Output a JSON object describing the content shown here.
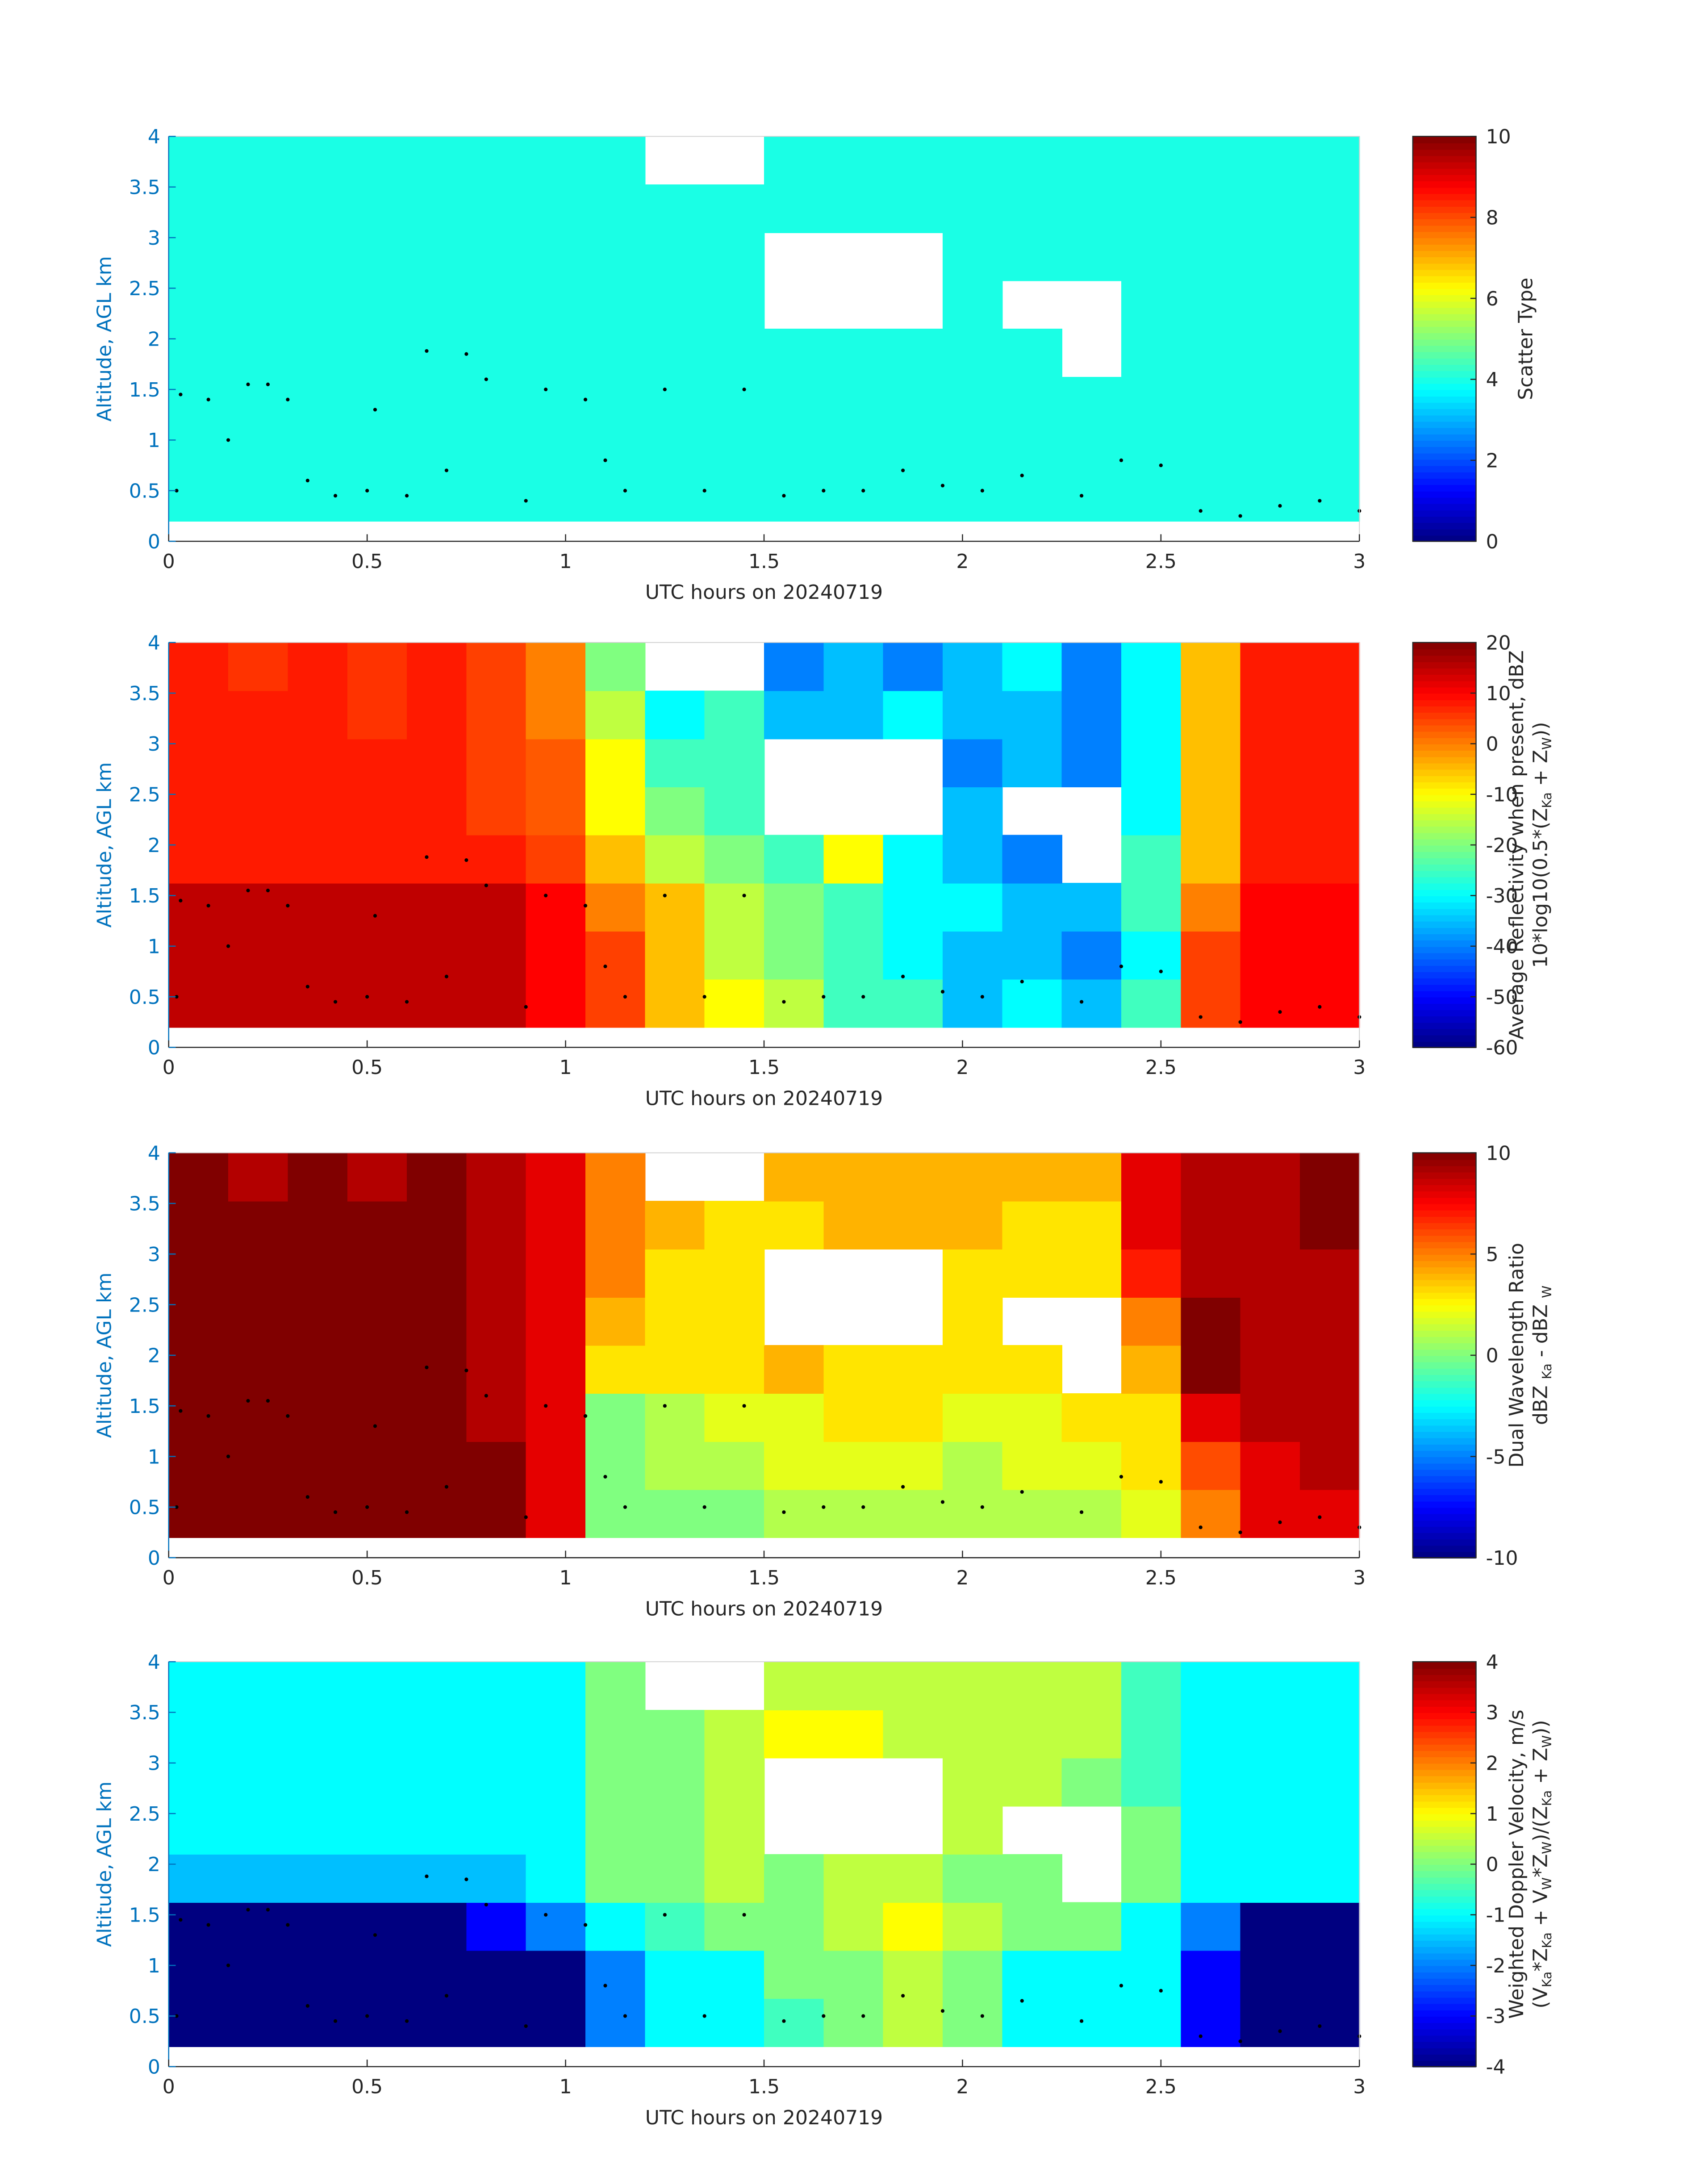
{
  "chart_data": [
    {
      "type": "heatmap",
      "xlabel": "UTC hours on 20240719",
      "ylabel": "Altitude, AGL km",
      "xlim": [
        0,
        3
      ],
      "ylim": [
        0,
        4
      ],
      "xticks": [
        0,
        0.5,
        1,
        1.5,
        2,
        2.5,
        3
      ],
      "yticks": [
        0,
        0.5,
        1,
        1.5,
        2,
        2.5,
        3,
        3.5,
        4
      ],
      "xbins": [
        0,
        0.15,
        0.3,
        0.45,
        0.6,
        0.75,
        0.9,
        1.05,
        1.2,
        1.35,
        1.5,
        1.65,
        1.8,
        1.95,
        2.1,
        2.25,
        2.4,
        2.55,
        2.7,
        2.85,
        3
      ],
      "ybins": [
        0.2,
        0.675,
        1.15,
        1.625,
        2.1,
        2.575,
        3.05,
        3.525,
        4
      ],
      "colormap": "jet",
      "clim": [
        0,
        10
      ],
      "cticks": [
        0,
        2,
        4,
        6,
        8,
        10
      ],
      "colorbar_label": [
        [
          "Scatter Type"
        ]
      ],
      "z": [
        [
          4,
          4,
          4,
          4,
          4,
          4,
          4,
          4,
          4,
          4,
          4,
          4,
          4,
          4,
          4,
          4,
          4,
          4,
          4,
          4
        ],
        [
          4,
          4,
          4,
          4,
          4,
          4,
          4,
          4,
          4,
          4,
          4,
          4,
          4,
          4,
          4,
          4,
          4,
          4,
          4,
          4
        ],
        [
          4,
          4,
          4,
          4,
          4,
          4,
          4,
          4,
          4,
          4,
          4,
          4,
          4,
          4,
          4,
          4,
          4,
          4,
          4,
          4
        ],
        [
          4,
          4,
          4,
          4,
          4,
          4,
          4,
          4,
          4,
          4,
          4,
          4,
          4,
          4,
          4,
          null,
          4,
          4,
          4,
          4
        ],
        [
          4,
          4,
          4,
          4,
          4,
          4,
          4,
          4,
          4,
          4,
          null,
          null,
          null,
          4,
          null,
          null,
          4,
          4,
          4,
          4
        ],
        [
          4,
          4,
          4,
          4,
          4,
          4,
          4,
          4,
          4,
          4,
          null,
          null,
          null,
          4,
          4,
          4,
          4,
          4,
          4,
          4
        ],
        [
          4,
          4,
          4,
          4,
          4,
          4,
          4,
          4,
          4,
          4,
          4,
          4,
          4,
          4,
          4,
          4,
          4,
          4,
          4,
          4
        ],
        [
          4,
          4,
          4,
          4,
          4,
          4,
          4,
          4,
          null,
          null,
          4,
          4,
          4,
          4,
          4,
          4,
          4,
          4,
          4,
          4
        ]
      ],
      "scatter": {
        "color": "#000000",
        "x": [
          0.02,
          0.03,
          0.1,
          0.15,
          0.2,
          0.25,
          0.3,
          0.35,
          0.42,
          0.5,
          0.52,
          0.6,
          0.65,
          0.7,
          0.75,
          0.8,
          0.9,
          0.95,
          1.05,
          1.1,
          1.15,
          1.25,
          1.35,
          1.45,
          1.55,
          1.65,
          1.75,
          1.85,
          1.95,
          2.05,
          2.15,
          2.3,
          2.4,
          2.5,
          2.6,
          2.7,
          2.8,
          2.9,
          3.0
        ],
        "y": [
          0.5,
          1.45,
          1.4,
          1.0,
          1.55,
          1.55,
          1.4,
          0.6,
          0.45,
          0.5,
          1.3,
          0.45,
          1.88,
          0.7,
          1.85,
          1.6,
          0.4,
          1.5,
          1.4,
          0.8,
          0.5,
          1.5,
          0.5,
          1.5,
          0.45,
          0.5,
          0.5,
          0.7,
          0.55,
          0.5,
          0.65,
          0.45,
          0.8,
          0.75,
          0.3,
          0.25,
          0.35,
          0.4,
          0.3
        ]
      }
    },
    {
      "type": "heatmap",
      "xlabel": "UTC hours on 20240719",
      "ylabel": "Altitude, AGL km",
      "xlim": [
        0,
        3
      ],
      "ylim": [
        0,
        4
      ],
      "xticks": [
        0,
        0.5,
        1,
        1.5,
        2,
        2.5,
        3
      ],
      "yticks": [
        0,
        0.5,
        1,
        1.5,
        2,
        2.5,
        3,
        3.5,
        4
      ],
      "xbins": [
        0,
        0.15,
        0.3,
        0.45,
        0.6,
        0.75,
        0.9,
        1.05,
        1.2,
        1.35,
        1.5,
        1.65,
        1.8,
        1.95,
        2.1,
        2.25,
        2.4,
        2.55,
        2.7,
        2.85,
        3
      ],
      "ybins": [
        0.2,
        0.675,
        1.15,
        1.625,
        2.1,
        2.575,
        3.05,
        3.525,
        4
      ],
      "colormap": "jet",
      "clim": [
        -60,
        20
      ],
      "cticks": [
        -60,
        -50,
        -40,
        -30,
        -20,
        -10,
        0,
        10,
        20
      ],
      "colorbar_label": [
        [
          "Average Reflectivity when present, dBZ"
        ],
        [
          "10*log10(0.5*(Z",
          "Ka",
          " + Z",
          "W",
          "))"
        ]
      ],
      "z": [
        [
          15,
          15,
          15,
          15,
          15,
          15,
          10,
          5,
          -5,
          -10,
          -15,
          -25,
          -25,
          -35,
          -30,
          -35,
          -25,
          5,
          10,
          10
        ],
        [
          15,
          15,
          15,
          15,
          15,
          15,
          10,
          5,
          -5,
          -15,
          -20,
          -25,
          -30,
          -35,
          -35,
          -40,
          -30,
          5,
          10,
          10
        ],
        [
          15,
          15,
          15,
          15,
          15,
          15,
          10,
          0,
          -5,
          -15,
          -20,
          -25,
          -30,
          -30,
          -35,
          -35,
          -25,
          0,
          10,
          10
        ],
        [
          8,
          8,
          8,
          8,
          8,
          8,
          5,
          -5,
          -15,
          -20,
          -25,
          -10,
          -30,
          -35,
          -40,
          null,
          -25,
          -5,
          8,
          8
        ],
        [
          8,
          8,
          8,
          8,
          8,
          5,
          3,
          -10,
          -20,
          -25,
          null,
          null,
          null,
          -35,
          null,
          null,
          -30,
          -5,
          8,
          8
        ],
        [
          8,
          8,
          8,
          8,
          8,
          5,
          3,
          -10,
          -25,
          -25,
          null,
          null,
          null,
          -40,
          -35,
          -40,
          -30,
          -5,
          8,
          8
        ],
        [
          8,
          8,
          8,
          6,
          8,
          5,
          0,
          -15,
          -30,
          -25,
          -35,
          -35,
          -30,
          -35,
          -35,
          -40,
          -30,
          -5,
          8,
          8
        ],
        [
          8,
          6,
          8,
          6,
          8,
          5,
          0,
          -20,
          null,
          null,
          -40,
          -35,
          -40,
          -35,
          -30,
          -40,
          -30,
          -5,
          8,
          8
        ]
      ],
      "scatter": {
        "color": "#000000",
        "x": [
          0.02,
          0.03,
          0.1,
          0.15,
          0.2,
          0.25,
          0.3,
          0.35,
          0.42,
          0.5,
          0.52,
          0.6,
          0.65,
          0.7,
          0.75,
          0.8,
          0.9,
          0.95,
          1.05,
          1.1,
          1.15,
          1.25,
          1.35,
          1.45,
          1.55,
          1.65,
          1.75,
          1.85,
          1.95,
          2.05,
          2.15,
          2.3,
          2.4,
          2.5,
          2.6,
          2.7,
          2.8,
          2.9,
          3.0
        ],
        "y": [
          0.5,
          1.45,
          1.4,
          1.0,
          1.55,
          1.55,
          1.4,
          0.6,
          0.45,
          0.5,
          1.3,
          0.45,
          1.88,
          0.7,
          1.85,
          1.6,
          0.4,
          1.5,
          1.4,
          0.8,
          0.5,
          1.5,
          0.5,
          1.5,
          0.45,
          0.5,
          0.5,
          0.7,
          0.55,
          0.5,
          0.65,
          0.45,
          0.8,
          0.75,
          0.3,
          0.25,
          0.35,
          0.4,
          0.3
        ]
      }
    },
    {
      "type": "heatmap",
      "xlabel": "UTC hours on 20240719",
      "ylabel": "Altitude, AGL km",
      "xlim": [
        0,
        3
      ],
      "ylim": [
        0,
        4
      ],
      "xticks": [
        0,
        0.5,
        1,
        1.5,
        2,
        2.5,
        3
      ],
      "yticks": [
        0,
        0.5,
        1,
        1.5,
        2,
        2.5,
        3,
        3.5,
        4
      ],
      "xbins": [
        0,
        0.15,
        0.3,
        0.45,
        0.6,
        0.75,
        0.9,
        1.05,
        1.2,
        1.35,
        1.5,
        1.65,
        1.8,
        1.95,
        2.1,
        2.25,
        2.4,
        2.55,
        2.7,
        2.85,
        3
      ],
      "ybins": [
        0.2,
        0.675,
        1.15,
        1.625,
        2.1,
        2.575,
        3.05,
        3.525,
        4
      ],
      "colormap": "jet",
      "clim": [
        -10,
        10
      ],
      "cticks": [
        -10,
        -5,
        0,
        5,
        10
      ],
      "colorbar_label": [
        [
          "Dual Wavelength Ratio"
        ],
        [
          "dBZ ",
          "Ka",
          " - dBZ ",
          "W"
        ]
      ],
      "z": [
        [
          10,
          10,
          10,
          10,
          10,
          10,
          8,
          0,
          0,
          0,
          1,
          1,
          1,
          1,
          1,
          1,
          2,
          5,
          8,
          8
        ],
        [
          10,
          10,
          10,
          10,
          10,
          10,
          8,
          0,
          1,
          1,
          2,
          2,
          2,
          1,
          2,
          2,
          3,
          6,
          8,
          9
        ],
        [
          10,
          10,
          10,
          10,
          10,
          9,
          8,
          0,
          1,
          2,
          2,
          3,
          3,
          2,
          2,
          3,
          3,
          8,
          9,
          9
        ],
        [
          10,
          10,
          10,
          10,
          10,
          9,
          8,
          3,
          3,
          3,
          4,
          3,
          3,
          3,
          3,
          null,
          4,
          10,
          9,
          9
        ],
        [
          10,
          10,
          10,
          10,
          10,
          9,
          8,
          4,
          3,
          3,
          null,
          null,
          null,
          3,
          null,
          null,
          5,
          10,
          9,
          9
        ],
        [
          10,
          10,
          10,
          10,
          10,
          9,
          8,
          5,
          3,
          3,
          null,
          null,
          null,
          3,
          3,
          3,
          7,
          9,
          9,
          9
        ],
        [
          10,
          10,
          10,
          10,
          10,
          9,
          8,
          5,
          4,
          3,
          3,
          4,
          4,
          4,
          3,
          3,
          8,
          9,
          9,
          10
        ],
        [
          10,
          9,
          10,
          9,
          10,
          9,
          8,
          5,
          null,
          null,
          4,
          4,
          4,
          4,
          4,
          4,
          8,
          9,
          9,
          10
        ]
      ],
      "scatter": {
        "color": "#000000",
        "x": [
          0.02,
          0.03,
          0.1,
          0.15,
          0.2,
          0.25,
          0.3,
          0.35,
          0.42,
          0.5,
          0.52,
          0.6,
          0.65,
          0.7,
          0.75,
          0.8,
          0.9,
          0.95,
          1.05,
          1.1,
          1.15,
          1.25,
          1.35,
          1.45,
          1.55,
          1.65,
          1.75,
          1.85,
          1.95,
          2.05,
          2.15,
          2.3,
          2.4,
          2.5,
          2.6,
          2.7,
          2.8,
          2.9,
          3.0
        ],
        "y": [
          0.5,
          1.45,
          1.4,
          1.0,
          1.55,
          1.55,
          1.4,
          0.6,
          0.45,
          0.5,
          1.3,
          0.45,
          1.88,
          0.7,
          1.85,
          1.6,
          0.4,
          1.5,
          1.4,
          0.8,
          0.5,
          1.5,
          0.5,
          1.5,
          0.45,
          0.5,
          0.5,
          0.7,
          0.55,
          0.5,
          0.65,
          0.45,
          0.8,
          0.75,
          0.3,
          0.25,
          0.35,
          0.4,
          0.3
        ]
      }
    },
    {
      "type": "heatmap",
      "xlabel": "UTC hours on 20240719",
      "ylabel": "Altitude, AGL km",
      "xlim": [
        0,
        3
      ],
      "ylim": [
        0,
        4
      ],
      "xticks": [
        0,
        0.5,
        1,
        1.5,
        2,
        2.5,
        3
      ],
      "yticks": [
        0,
        0.5,
        1,
        1.5,
        2,
        2.5,
        3,
        3.5,
        4
      ],
      "xbins": [
        0,
        0.15,
        0.3,
        0.45,
        0.6,
        0.75,
        0.9,
        1.05,
        1.2,
        1.35,
        1.5,
        1.65,
        1.8,
        1.95,
        2.1,
        2.25,
        2.4,
        2.55,
        2.7,
        2.85,
        3
      ],
      "ybins": [
        0.2,
        0.675,
        1.15,
        1.625,
        2.1,
        2.575,
        3.05,
        3.525,
        4
      ],
      "colormap": "jet",
      "clim": [
        -4,
        4
      ],
      "cticks": [
        -4,
        -3,
        -2,
        -1,
        0,
        1,
        2,
        3,
        4
      ],
      "colorbar_label": [
        [
          "Weighted Doppler Velocity, m/s"
        ],
        [
          "(V",
          "Ka",
          "*Z",
          "Ka",
          " + V",
          "W",
          "*Z",
          "W",
          ")/(Z",
          "Ka",
          " + Z",
          "W",
          "))"
        ]
      ],
      "z": [
        [
          -4,
          -4,
          -4,
          -4,
          -4,
          -4,
          -4,
          -2,
          -1,
          -1,
          -0.5,
          0,
          0.5,
          0,
          -1,
          -1,
          -1,
          -3,
          -4,
          -4
        ],
        [
          -4,
          -4,
          -4,
          -4,
          -4,
          -4,
          -4,
          -2,
          -1,
          -1,
          0,
          0,
          0.5,
          0,
          -1,
          -1,
          -1,
          -3,
          -4,
          -4
        ],
        [
          -4,
          -4,
          -4,
          -4,
          -4,
          -3,
          -2,
          -1,
          -0.5,
          0,
          0,
          0.5,
          1,
          0.5,
          0,
          0,
          -1,
          -2,
          -4,
          -4
        ],
        [
          -1.5,
          -1.5,
          -1.5,
          -1.5,
          -1.5,
          -1.5,
          -1,
          0,
          0,
          0.5,
          0,
          0.5,
          0.5,
          0,
          0,
          null,
          0,
          -1,
          -1,
          -1
        ],
        [
          -1,
          -1,
          -1,
          -1,
          -1,
          -1,
          -1,
          0,
          0,
          0.5,
          null,
          null,
          null,
          0.5,
          null,
          null,
          0,
          -1,
          -1,
          -1
        ],
        [
          -1,
          -1,
          -1,
          -1,
          -1,
          -1,
          -1,
          0,
          0,
          0.5,
          null,
          null,
          null,
          0.5,
          0.5,
          0,
          -0.5,
          -1,
          -1,
          -1
        ],
        [
          -1,
          -1,
          -1,
          -1,
          -1,
          -1,
          -1,
          0,
          0,
          0.5,
          1,
          1,
          0.5,
          0.5,
          0.5,
          0.5,
          -0.5,
          -1,
          -1,
          -1
        ],
        [
          -1,
          -1,
          -1,
          -1,
          -1,
          -1,
          -1,
          0,
          null,
          null,
          0.5,
          0.5,
          0.5,
          0.5,
          0.5,
          0.5,
          -0.5,
          -1,
          -1,
          -1
        ]
      ],
      "scatter": {
        "color": "#000000",
        "x": [
          0.02,
          0.03,
          0.1,
          0.15,
          0.2,
          0.25,
          0.3,
          0.35,
          0.42,
          0.5,
          0.52,
          0.6,
          0.65,
          0.7,
          0.75,
          0.8,
          0.9,
          0.95,
          1.05,
          1.1,
          1.15,
          1.25,
          1.35,
          1.45,
          1.55,
          1.65,
          1.75,
          1.85,
          1.95,
          2.05,
          2.15,
          2.3,
          2.4,
          2.5,
          2.6,
          2.7,
          2.8,
          2.9,
          3.0
        ],
        "y": [
          0.5,
          1.45,
          1.4,
          1.0,
          1.55,
          1.55,
          1.4,
          0.6,
          0.45,
          0.5,
          1.3,
          0.45,
          1.88,
          0.7,
          1.85,
          1.6,
          0.4,
          1.5,
          1.4,
          0.8,
          0.5,
          1.5,
          0.5,
          1.5,
          0.45,
          0.5,
          0.5,
          0.7,
          0.55,
          0.5,
          0.65,
          0.45,
          0.8,
          0.75,
          0.3,
          0.25,
          0.35,
          0.4,
          0.3
        ]
      }
    }
  ]
}
